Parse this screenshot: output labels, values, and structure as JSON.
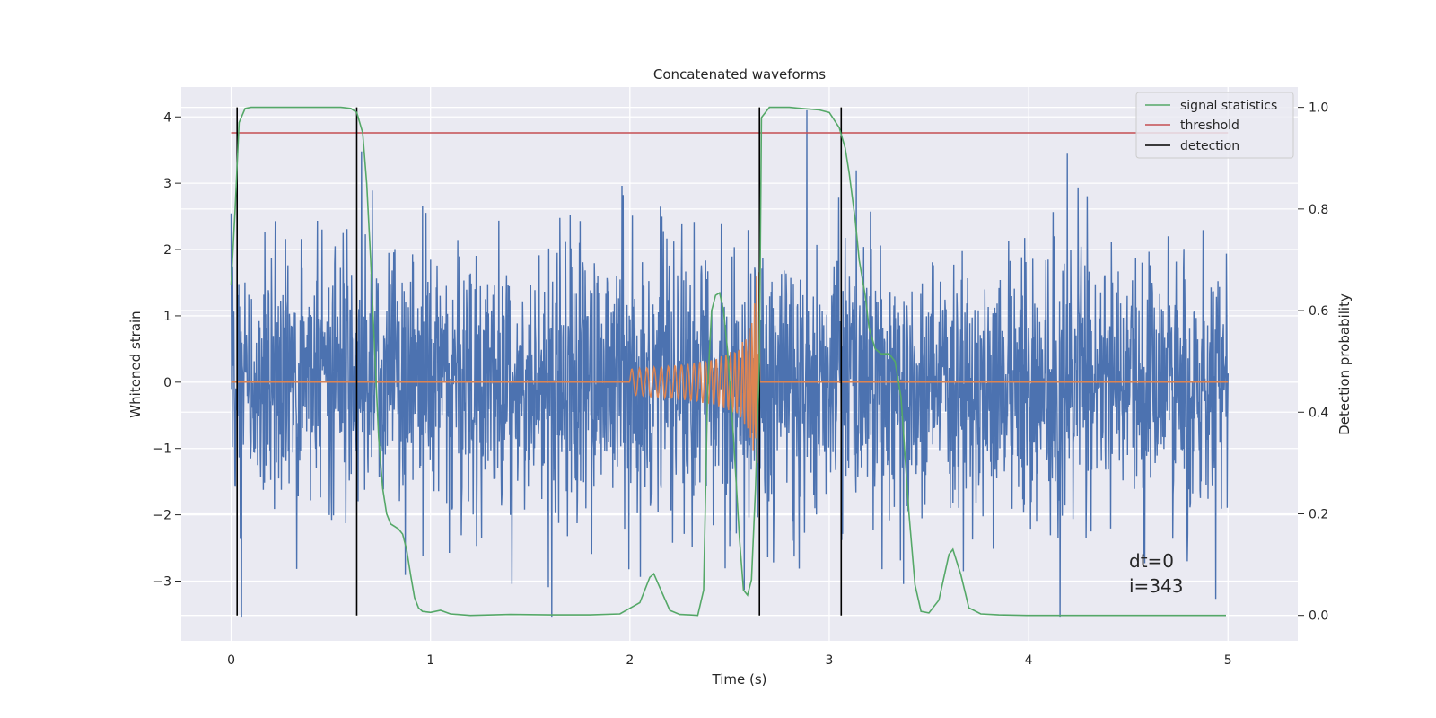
{
  "chart_data": {
    "type": "line",
    "title": "Concatenated waveforms",
    "xlabel": "Time (s)",
    "ylabel_left": "Whitened strain",
    "ylabel_right": "Detection probability",
    "xlim": [
      -0.25,
      5.35
    ],
    "ylim_left": [
      -3.9,
      4.45
    ],
    "ylim_right": [
      -0.05,
      1.04
    ],
    "x_ticks": [
      0,
      1,
      2,
      3,
      4,
      5
    ],
    "y_left_ticks": [
      -3,
      -2,
      -1,
      0,
      1,
      2,
      3,
      4
    ],
    "y_right_ticks": [
      0.0,
      0.2,
      0.4,
      0.6,
      0.8,
      1.0
    ],
    "grid": true,
    "legend_position": "top-right",
    "legend": [
      {
        "label": "signal statistics",
        "color": "#55a868"
      },
      {
        "label": "threshold",
        "color": "#c44e52"
      },
      {
        "label": "detection",
        "color": "#000000"
      }
    ],
    "colors": {
      "strain": "#4c72b0",
      "injected_waveform": "#dd8452",
      "signal_statistics": "#55a868",
      "threshold": "#c44e52",
      "detection": "#000000",
      "plot_background": "#eaeaf2"
    },
    "series": [
      {
        "name": "signal statistics",
        "axis": "right",
        "x": [
          0.0,
          0.02,
          0.04,
          0.07,
          0.1,
          0.2,
          0.4,
          0.55,
          0.6,
          0.63,
          0.66,
          0.68,
          0.7,
          0.72,
          0.74,
          0.76,
          0.78,
          0.8,
          0.82,
          0.84,
          0.86,
          0.88,
          0.9,
          0.92,
          0.94,
          0.96,
          1.0,
          1.05,
          1.1,
          1.2,
          1.4,
          1.6,
          1.8,
          1.95,
          2.05,
          2.1,
          2.12,
          2.15,
          2.2,
          2.25,
          2.3,
          2.34,
          2.37,
          2.39,
          2.41,
          2.43,
          2.45,
          2.47,
          2.49,
          2.52,
          2.55,
          2.57,
          2.59,
          2.61,
          2.63,
          2.65,
          2.66,
          2.7,
          2.8,
          2.95,
          3.0,
          3.05,
          3.08,
          3.1,
          3.13,
          3.15,
          3.18,
          3.2,
          3.23,
          3.26,
          3.3,
          3.33,
          3.36,
          3.4,
          3.43,
          3.46,
          3.5,
          3.55,
          3.6,
          3.62,
          3.66,
          3.7,
          3.76,
          3.85,
          4.0,
          4.5,
          4.99
        ],
        "values": [
          0.65,
          0.8,
          0.97,
          0.998,
          1.0,
          1.0,
          1.0,
          1.0,
          0.998,
          0.99,
          0.95,
          0.85,
          0.7,
          0.52,
          0.35,
          0.25,
          0.2,
          0.18,
          0.175,
          0.17,
          0.16,
          0.13,
          0.08,
          0.035,
          0.015,
          0.008,
          0.006,
          0.01,
          0.003,
          0.0,
          0.002,
          0.001,
          0.001,
          0.003,
          0.025,
          0.075,
          0.082,
          0.055,
          0.01,
          0.002,
          0.001,
          0.0,
          0.05,
          0.45,
          0.6,
          0.63,
          0.635,
          0.6,
          0.52,
          0.35,
          0.15,
          0.05,
          0.04,
          0.07,
          0.25,
          0.5,
          0.98,
          1.0,
          1.0,
          0.995,
          0.99,
          0.96,
          0.92,
          0.87,
          0.78,
          0.7,
          0.63,
          0.565,
          0.525,
          0.515,
          0.515,
          0.5,
          0.43,
          0.2,
          0.06,
          0.008,
          0.005,
          0.03,
          0.12,
          0.13,
          0.08,
          0.015,
          0.003,
          0.001,
          0.0,
          0.0,
          0.0
        ]
      },
      {
        "name": "threshold",
        "axis": "right",
        "x": [
          0.0,
          5.0
        ],
        "values": [
          0.95,
          0.95
        ]
      },
      {
        "name": "detection",
        "axis": "right",
        "x": [
          0.03,
          0.63,
          2.65,
          3.06
        ]
      }
    ],
    "annotations": [
      "dt=0",
      "i=343"
    ]
  }
}
